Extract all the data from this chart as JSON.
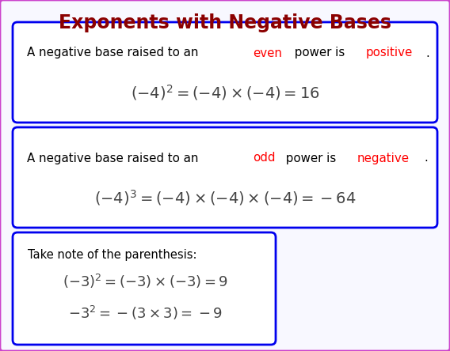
{
  "title": "Exponents with Negative Bases",
  "title_color": "#8B0000",
  "bg_color": "#F8F8FF",
  "outer_border_color": "#CC44CC",
  "box1_parts": [
    [
      "A negative base raised to an ",
      "#000000"
    ],
    [
      "even",
      "#FF0000"
    ],
    [
      " power is ",
      "#000000"
    ],
    [
      "positive",
      "#FF0000"
    ],
    [
      ".",
      "#000000"
    ]
  ],
  "box1_formula": "$(-4)^{2}=(-4)\\times(-4)=16$",
  "box2_parts": [
    [
      "A negative base raised to an ",
      "#000000"
    ],
    [
      "odd",
      "#FF0000"
    ],
    [
      " power is ",
      "#000000"
    ],
    [
      "negative",
      "#FF0000"
    ],
    [
      ".",
      "#000000"
    ]
  ],
  "box2_formula": "$(-4)^{3}=(-4)\\times(-4)\\times(-4)=-64$",
  "box3_header": "Take note of the parenthesis:",
  "box3_formula1": "$(-3)^{2}=(-3)\\times(-3)=9$",
  "box3_formula2": "$-3^{2}=-(3\\times3)=-9$",
  "box_border_color": "#0000EE",
  "formula_color": "#444444",
  "text_color": "#000000",
  "box_bg": "#FFFFFF"
}
